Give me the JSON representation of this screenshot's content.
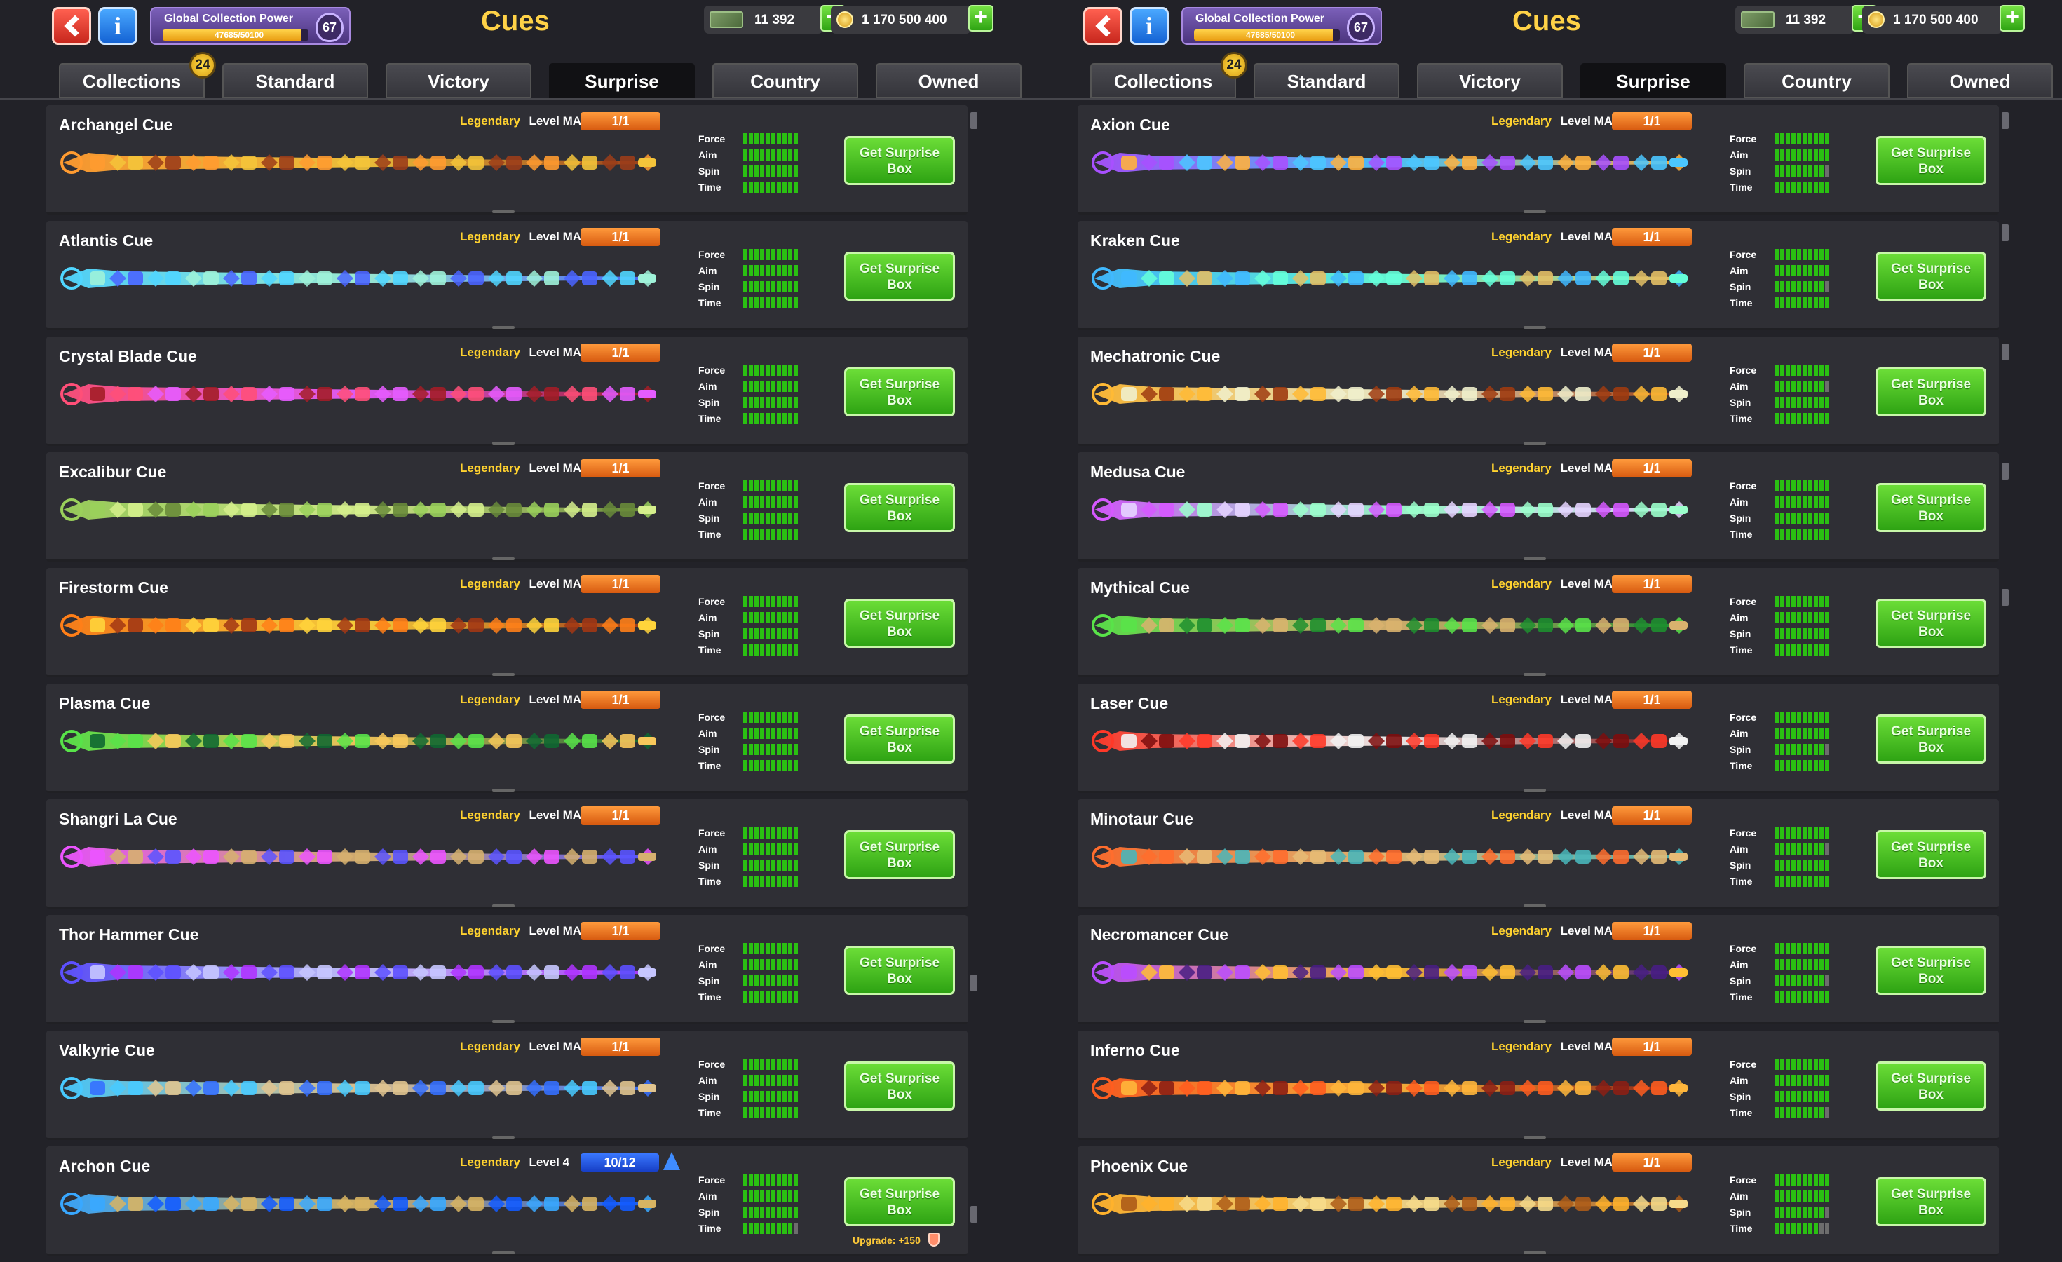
{
  "screens": [
    {
      "title": "Cues",
      "global_collection_power": {
        "label": "Global Collection Power",
        "value": "47685/50100",
        "level": "67",
        "progress_fraction": 0.952
      },
      "currency": {
        "cash": "11 392",
        "coins": "1 170 500 400"
      },
      "tabs": [
        {
          "label": "Collections",
          "badge": "24"
        },
        {
          "label": "Standard"
        },
        {
          "label": "Victory"
        },
        {
          "label": "Surprise",
          "active": true
        },
        {
          "label": "Country"
        },
        {
          "label": "Owned"
        }
      ],
      "cues": [
        {
          "name": "Archangel Cue",
          "rarity": "Legendary",
          "level": "Level MAX",
          "count": "1/1",
          "button": "Get Surprise Box",
          "colors": [
            "#ff9b30",
            "#f4c43a",
            "#9b3d19"
          ],
          "stats": {
            "force": 10,
            "aim": 10,
            "spin": 10,
            "time": 10
          }
        },
        {
          "name": "Atlantis Cue",
          "rarity": "Legendary",
          "level": "Level MAX",
          "count": "1/1",
          "button": "Get Surprise Box",
          "colors": [
            "#50d6ff",
            "#9ff2d9",
            "#4a64ff"
          ],
          "stats": {
            "force": 10,
            "aim": 10,
            "spin": 10,
            "time": 10
          }
        },
        {
          "name": "Crystal Blade Cue",
          "rarity": "Legendary",
          "level": "Level MAX",
          "count": "1/1",
          "button": "Get Surprise Box",
          "colors": [
            "#ff4f78",
            "#e65cff",
            "#a31d27"
          ],
          "stats": {
            "force": 10,
            "aim": 10,
            "spin": 10,
            "time": 10
          }
        },
        {
          "name": "Excalibur Cue",
          "rarity": "Legendary",
          "level": "Level MAX",
          "count": "1/1",
          "button": "Get Surprise Box",
          "colors": [
            "#9ad05b",
            "#d5ef8c",
            "#698b3a"
          ],
          "stats": {
            "force": 10,
            "aim": 10,
            "spin": 10,
            "time": 10
          }
        },
        {
          "name": "Firestorm Cue",
          "rarity": "Legendary",
          "level": "Level MAX",
          "count": "1/1",
          "button": "Get Surprise Box",
          "colors": [
            "#ff7f18",
            "#ffd43b",
            "#a23714"
          ],
          "stats": {
            "force": 10,
            "aim": 10,
            "spin": 10,
            "time": 10
          }
        },
        {
          "name": "Plasma Cue",
          "rarity": "Legendary",
          "level": "Level MAX",
          "count": "1/1",
          "button": "Get Surprise Box",
          "colors": [
            "#58e349",
            "#f8c85b",
            "#0f6831"
          ],
          "stats": {
            "force": 10,
            "aim": 10,
            "spin": 10,
            "time": 10
          }
        },
        {
          "name": "Shangri La Cue",
          "rarity": "Legendary",
          "level": "Level MAX",
          "count": "1/1",
          "button": "Get Surprise Box",
          "colors": [
            "#ec54ff",
            "#d6b06f",
            "#5a54ff"
          ],
          "stats": {
            "force": 10,
            "aim": 10,
            "spin": 10,
            "time": 10
          }
        },
        {
          "name": "Thor Hammer Cue",
          "rarity": "Legendary",
          "level": "Level MAX",
          "count": "1/1",
          "button": "Get Surprise Box",
          "colors": [
            "#5d50ff",
            "#c6c6ff",
            "#af33ff"
          ],
          "stats": {
            "force": 10,
            "aim": 10,
            "spin": 10,
            "time": 10
          }
        },
        {
          "name": "Valkyrie Cue",
          "rarity": "Legendary",
          "level": "Level MAX",
          "count": "1/1",
          "button": "Get Surprise Box",
          "colors": [
            "#48caff",
            "#e0c48f",
            "#3570ff"
          ],
          "stats": {
            "force": 10,
            "aim": 10,
            "spin": 10,
            "time": 10
          }
        },
        {
          "name": "Archon Cue",
          "rarity": "Legendary",
          "level": "Level 4",
          "count": "10/12",
          "count_style": "blue",
          "button": "Get Surprise Box",
          "upgrade": "Upgrade: +150",
          "colors": [
            "#39a8ff",
            "#d8b462",
            "#125bff"
          ],
          "stats": {
            "force": 10,
            "aim": 10,
            "spin": 10,
            "time": 9
          }
        }
      ]
    },
    {
      "title": "Cues",
      "global_collection_power": {
        "label": "Global Collection Power",
        "value": "47685/50100",
        "level": "67",
        "progress_fraction": 0.952
      },
      "currency": {
        "cash": "11 392",
        "coins": "1 170 500 400"
      },
      "tabs": [
        {
          "label": "Collections",
          "badge": "24"
        },
        {
          "label": "Standard"
        },
        {
          "label": "Victory"
        },
        {
          "label": "Surprise",
          "active": true
        },
        {
          "label": "Country"
        },
        {
          "label": "Owned"
        }
      ],
      "cues": [
        {
          "name": "Axion Cue",
          "rarity": "Legendary",
          "level": "Level MAX",
          "count": "1/1",
          "button": "Get Surprise Box",
          "colors": [
            "#a850ff",
            "#4bc7ff",
            "#ffb13e"
          ],
          "stats": {
            "force": 10,
            "aim": 10,
            "spin": 9,
            "time": 10
          }
        },
        {
          "name": "Kraken Cue",
          "rarity": "Legendary",
          "level": "Level MAX",
          "count": "1/1",
          "button": "Get Surprise Box",
          "colors": [
            "#40b9ff",
            "#65ffd9",
            "#e3bf65"
          ],
          "stats": {
            "force": 10,
            "aim": 10,
            "spin": 9,
            "time": 10
          }
        },
        {
          "name": "Mechatronic Cue",
          "rarity": "Legendary",
          "level": "Level MAX",
          "count": "1/1",
          "button": "Get Surprise Box",
          "colors": [
            "#ffba35",
            "#f0f0cc",
            "#9f3b10"
          ],
          "stats": {
            "force": 10,
            "aim": 9,
            "spin": 10,
            "time": 10
          }
        },
        {
          "name": "Medusa Cue",
          "rarity": "Legendary",
          "level": "Level MAX",
          "count": "1/1",
          "button": "Get Surprise Box",
          "colors": [
            "#d658ff",
            "#9bffcb",
            "#e5d4ff"
          ],
          "stats": {
            "force": 10,
            "aim": 10,
            "spin": 10,
            "time": 10
          }
        },
        {
          "name": "Mythical Cue",
          "rarity": "Legendary",
          "level": "Level MAX",
          "count": "1/1",
          "button": "Get Surprise Box",
          "colors": [
            "#59e349",
            "#d9b26e",
            "#1e8f2f"
          ],
          "stats": {
            "force": 10,
            "aim": 10,
            "spin": 10,
            "time": 10
          }
        },
        {
          "name": "Laser Cue",
          "rarity": "Legendary",
          "level": "Level MAX",
          "count": "1/1",
          "button": "Get Surprise Box",
          "colors": [
            "#ff3828",
            "#f2f2f2",
            "#7d0d0d"
          ],
          "stats": {
            "force": 10,
            "aim": 10,
            "spin": 9,
            "time": 10
          }
        },
        {
          "name": "Minotaur Cue",
          "rarity": "Legendary",
          "level": "Level MAX",
          "count": "1/1",
          "button": "Get Surprise Box",
          "colors": [
            "#ff6d2d",
            "#e6bb76",
            "#49b6ba"
          ],
          "stats": {
            "force": 10,
            "aim": 9,
            "spin": 10,
            "time": 10
          }
        },
        {
          "name": "Necromancer Cue",
          "rarity": "Legendary",
          "level": "Level MAX",
          "count": "1/1",
          "button": "Get Surprise Box",
          "colors": [
            "#ba4dff",
            "#ffbe33",
            "#481e83"
          ],
          "stats": {
            "force": 10,
            "aim": 10,
            "spin": 9,
            "time": 10
          }
        },
        {
          "name": "Inferno Cue",
          "rarity": "Legendary",
          "level": "Level MAX",
          "count": "1/1",
          "button": "Get Surprise Box",
          "colors": [
            "#ff5d1f",
            "#ffb63b",
            "#8c1f14"
          ],
          "stats": {
            "force": 10,
            "aim": 10,
            "spin": 10,
            "time": 9
          }
        },
        {
          "name": "Phoenix Cue",
          "rarity": "Legendary",
          "level": "Level MAX",
          "count": "1/1",
          "button": "Get Surprise Box",
          "colors": [
            "#ffb22c",
            "#f6db8b",
            "#ad5c18"
          ],
          "stats": {
            "force": 10,
            "aim": 10,
            "spin": 9,
            "time": 8
          }
        }
      ]
    }
  ]
}
